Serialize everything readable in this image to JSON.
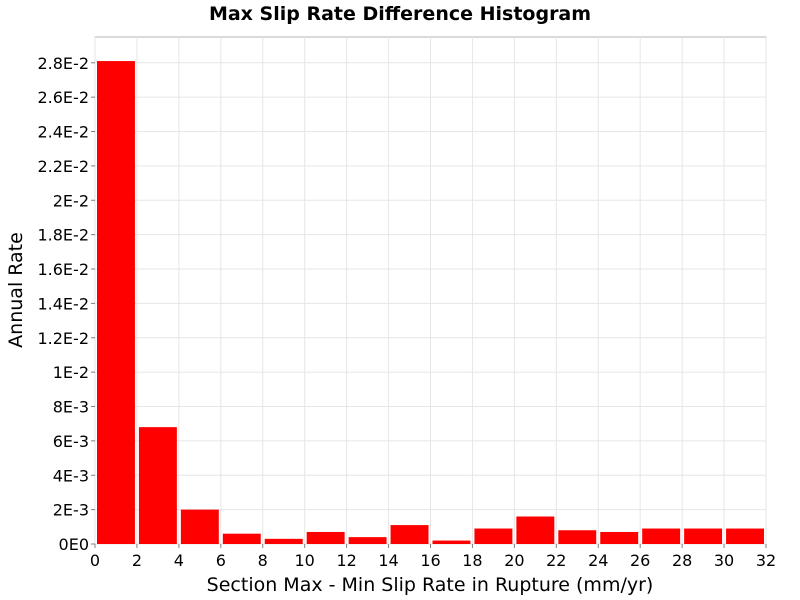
{
  "chart_data": {
    "type": "bar",
    "title": "Max Slip Rate Difference Histogram",
    "xlabel": "Section Max - Min Slip Rate in Rupture (mm/yr)",
    "ylabel": "Annual Rate",
    "xlim": [
      0,
      32
    ],
    "ylim": [
      0,
      0.0295
    ],
    "bin_width": 2,
    "bar_color": "#ff0000",
    "grid": true,
    "x_ticks": [
      0,
      2,
      4,
      6,
      8,
      10,
      12,
      14,
      16,
      18,
      20,
      22,
      24,
      26,
      28,
      30,
      32
    ],
    "x_tick_labels": [
      "0",
      "2",
      "4",
      "6",
      "8",
      "10",
      "12",
      "14",
      "16",
      "18",
      "20",
      "22",
      "24",
      "26",
      "28",
      "30",
      "32"
    ],
    "y_ticks": [
      0,
      0.002,
      0.004,
      0.006,
      0.008,
      0.01,
      0.012,
      0.014,
      0.016,
      0.018,
      0.02,
      0.022,
      0.024,
      0.026,
      0.028
    ],
    "y_tick_labels": [
      "0E0",
      "2E-3",
      "4E-3",
      "6E-3",
      "8E-3",
      "1E-2",
      "1.2E-2",
      "1.4E-2",
      "1.6E-2",
      "1.8E-2",
      "2E-2",
      "2.2E-2",
      "2.4E-2",
      "2.6E-2",
      "2.8E-2"
    ],
    "bins": [
      {
        "x0": 0,
        "x1": 2,
        "value": 0.0281
      },
      {
        "x0": 2,
        "x1": 4,
        "value": 0.0068
      },
      {
        "x0": 4,
        "x1": 6,
        "value": 0.002
      },
      {
        "x0": 6,
        "x1": 8,
        "value": 0.0006
      },
      {
        "x0": 8,
        "x1": 10,
        "value": 0.0003
      },
      {
        "x0": 10,
        "x1": 12,
        "value": 0.0007
      },
      {
        "x0": 12,
        "x1": 14,
        "value": 0.0004
      },
      {
        "x0": 14,
        "x1": 16,
        "value": 0.0011
      },
      {
        "x0": 16,
        "x1": 18,
        "value": 0.0002
      },
      {
        "x0": 18,
        "x1": 20,
        "value": 0.0009
      },
      {
        "x0": 20,
        "x1": 22,
        "value": 0.0016
      },
      {
        "x0": 22,
        "x1": 24,
        "value": 0.0008
      },
      {
        "x0": 24,
        "x1": 26,
        "value": 0.0007
      },
      {
        "x0": 26,
        "x1": 28,
        "value": 0.0009
      },
      {
        "x0": 28,
        "x1": 30,
        "value": 0.0009
      },
      {
        "x0": 30,
        "x1": 32,
        "value": 0.0009
      }
    ]
  }
}
